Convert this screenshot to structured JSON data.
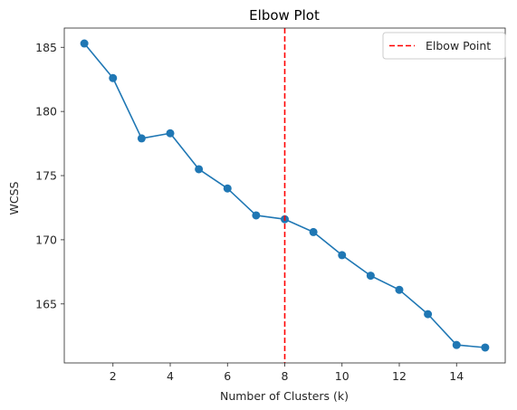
{
  "chart_data": {
    "type": "line",
    "title": "Elbow Plot",
    "xlabel": "Number of Clusters (k)",
    "ylabel": "WCSS",
    "x": [
      1,
      2,
      3,
      4,
      5,
      6,
      7,
      8,
      9,
      10,
      11,
      12,
      13,
      14,
      15
    ],
    "series": [
      {
        "values": [
          185.3,
          182.6,
          177.9,
          178.3,
          175.5,
          174.0,
          171.9,
          171.6,
          170.6,
          168.8,
          167.2,
          166.1,
          164.2,
          161.8,
          161.6
        ],
        "color": "#1f77b4",
        "marker": "circle"
      }
    ],
    "xlim": [
      0.3,
      15.7
    ],
    "ylim": [
      160.4,
      186.5
    ],
    "xticks": [
      2,
      4,
      6,
      8,
      10,
      12,
      14
    ],
    "yticks": [
      165,
      170,
      175,
      180,
      185
    ],
    "xtick_labels": [
      "2",
      "4",
      "6",
      "8",
      "10",
      "12",
      "14"
    ],
    "ytick_labels": [
      "165",
      "170",
      "175",
      "180",
      "185"
    ],
    "vline": {
      "x": 8,
      "label": "Elbow Point",
      "color": "#ff0000",
      "style": "dashed"
    },
    "legend": {
      "placement": "top-right",
      "entries": [
        "Elbow Point"
      ]
    },
    "grid": false
  }
}
